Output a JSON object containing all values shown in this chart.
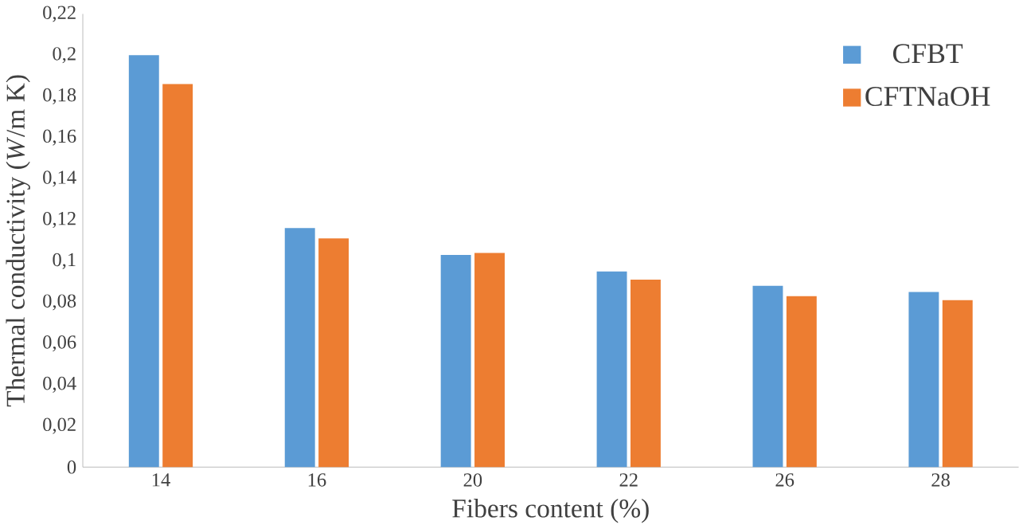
{
  "chart_data": {
    "type": "bar",
    "xlabel": "Fibers content (%)",
    "ylabel": "Thermal conductivity (*W*/m K)",
    "categories": [
      "14",
      "16",
      "20",
      "22",
      "26",
      "28"
    ],
    "series": [
      {
        "name": "CFBT",
        "color": "#5b9bd5",
        "values": [
          0.2,
          0.116,
          0.103,
          0.095,
          0.088,
          0.085
        ]
      },
      {
        "name": "CFTNaOH",
        "color": "#ed7d31",
        "values": [
          0.186,
          0.111,
          0.104,
          0.091,
          0.083,
          0.081
        ]
      }
    ],
    "ylim": [
      0,
      0.22
    ],
    "yticks": [
      {
        "value": 0,
        "label": "0"
      },
      {
        "value": 0.02,
        "label": "0,02"
      },
      {
        "value": 0.04,
        "label": "0,04"
      },
      {
        "value": 0.06,
        "label": "0,06"
      },
      {
        "value": 0.08,
        "label": "0,08"
      },
      {
        "value": 0.1,
        "label": "0,1"
      },
      {
        "value": 0.12,
        "label": "0,12"
      },
      {
        "value": 0.14,
        "label": "0,14"
      },
      {
        "value": 0.16,
        "label": "0,16"
      },
      {
        "value": 0.18,
        "label": "0,18"
      },
      {
        "value": 0.2,
        "label": "0,2"
      },
      {
        "value": 0.22,
        "label": "0,22"
      }
    ],
    "legend": "top right"
  }
}
